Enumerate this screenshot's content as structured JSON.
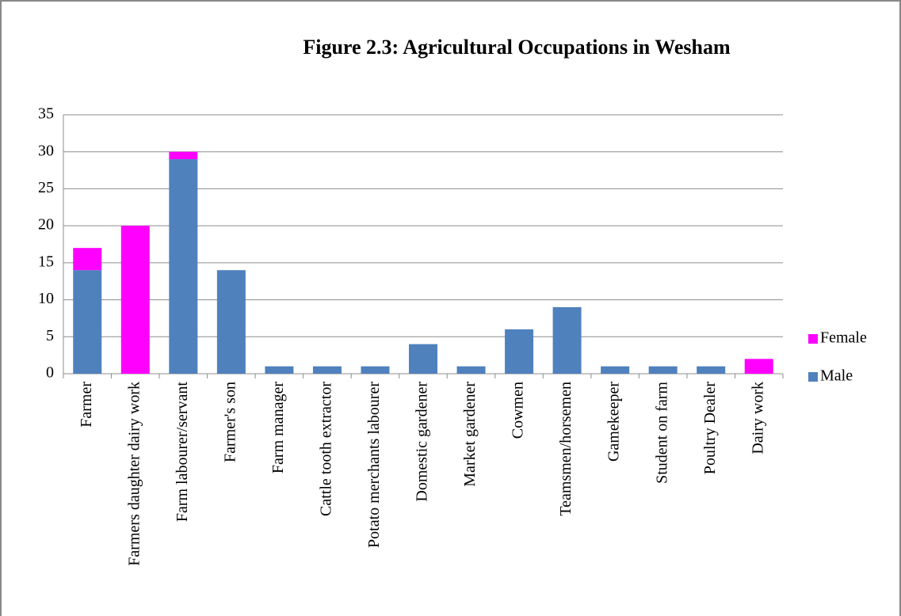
{
  "chart_data": {
    "type": "stacked_bar",
    "title": "Figure 2.3: Agricultural Occupations in Wesham",
    "categories": [
      "Farmer",
      "Farmers daughter dairy work",
      "Farm labourer/servant",
      "Farmer's son",
      "Farm manager",
      "Cattle tooth extractor",
      "Potato merchants labourer",
      "Domestic gardener",
      "Market gardener",
      "Cowmen",
      "Teamsmen/horsemen",
      "Gamekeeper",
      "Student on farm",
      "Poultry Dealer",
      "Dairy work"
    ],
    "series": [
      {
        "name": "Male",
        "color": "#4f81bd",
        "values": [
          14,
          0,
          29,
          14,
          1,
          1,
          1,
          4,
          1,
          6,
          9,
          1,
          1,
          1,
          0
        ]
      },
      {
        "name": "Female",
        "color": "#ff00ff",
        "values": [
          3,
          20,
          1,
          0,
          0,
          0,
          0,
          0,
          0,
          0,
          0,
          0,
          0,
          0,
          2
        ]
      }
    ],
    "ylim": [
      0,
      35
    ],
    "yticks": [
      0,
      5,
      10,
      15,
      20,
      25,
      30,
      35
    ],
    "grid": true,
    "legend": "right"
  }
}
